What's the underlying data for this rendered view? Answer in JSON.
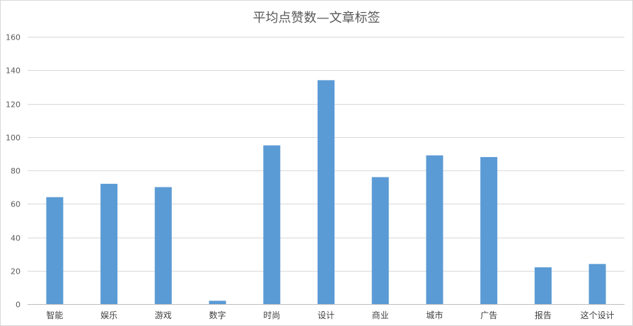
{
  "chart_data": {
    "type": "bar",
    "title": "平均点赞数—文章标签",
    "xlabel": "",
    "ylabel": "",
    "ylim": [
      0,
      160
    ],
    "yticks": [
      0,
      20,
      40,
      60,
      80,
      100,
      120,
      140,
      160
    ],
    "grid": true,
    "legend": "none",
    "categories": [
      "智能",
      "娱乐",
      "游戏",
      "数字",
      "时尚",
      "设计",
      "商业",
      "城市",
      "广告",
      "报告",
      "这个设计"
    ],
    "values": [
      64,
      72,
      70,
      2,
      95,
      134,
      76,
      89,
      88,
      22,
      24
    ],
    "colors": {
      "bar": "#5b9bd5",
      "grid": "#d9d9d9",
      "axis": "#bfbfbf"
    }
  }
}
